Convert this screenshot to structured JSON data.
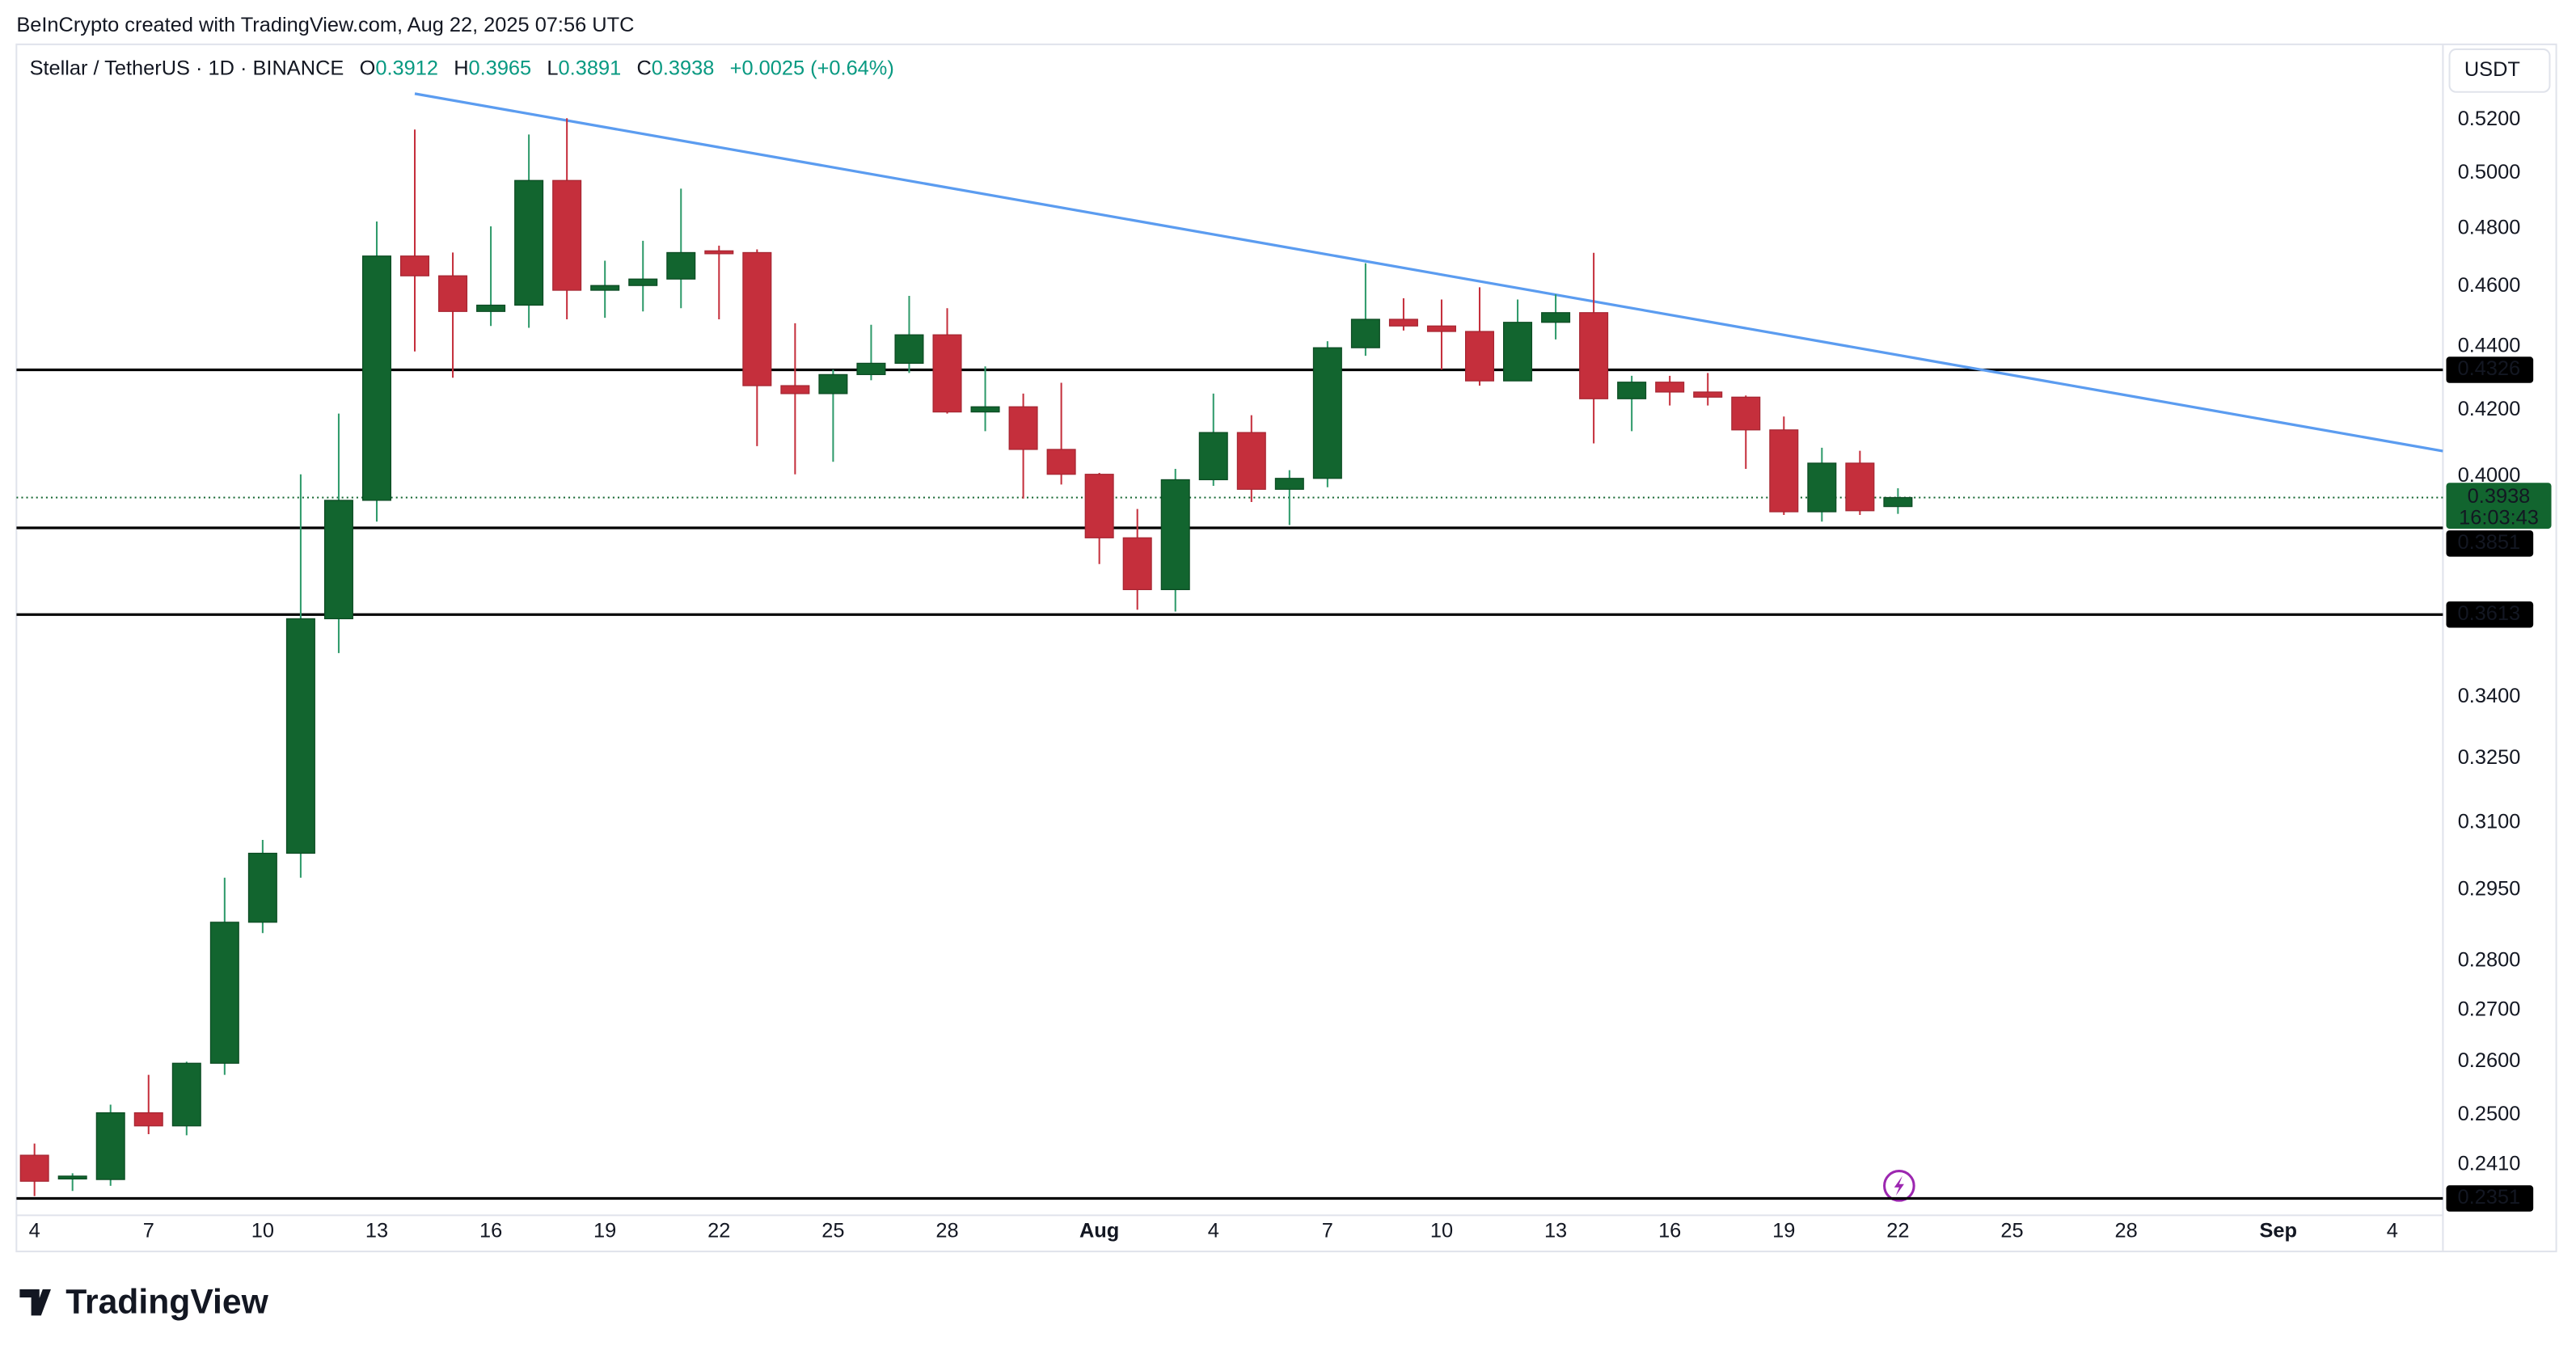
{
  "header": {
    "credit": "BeInCrypto created with TradingView.com, Aug 22, 2025 07:56 UTC"
  },
  "footer": {
    "logo": "TradingView"
  },
  "chart_data": {
    "type": "candlestick",
    "title": "Stellar / TetherUS · 1D · BINANCE",
    "ohlc_letters": [
      "O",
      "H",
      "L",
      "C"
    ],
    "change": "+0.0025 (+0.64%)",
    "currency": "USDT",
    "countdown": "16:03:43",
    "log_scale": true,
    "grid": false,
    "up_color": "#12652f",
    "up_wick_color": "#2e9a6a",
    "down_color": "#c52f3c",
    "header_value_color": "#089981",
    "x": [
      0,
      1,
      2,
      3,
      4,
      5,
      6,
      7,
      8,
      9,
      10,
      11,
      12,
      13,
      14,
      15,
      16,
      17,
      18,
      19,
      20,
      21,
      22,
      23,
      24,
      25,
      26,
      27,
      28,
      29,
      30,
      31,
      32,
      33,
      34,
      35,
      36,
      37,
      38,
      39,
      40,
      41,
      42,
      43,
      44,
      45,
      46,
      47,
      48,
      49
    ],
    "open": [
      0.2427,
      0.2385,
      0.2384,
      0.2504,
      0.248,
      0.2597,
      0.2881,
      0.3031,
      0.3602,
      0.393,
      0.4704,
      0.4636,
      0.4516,
      0.4537,
      0.4973,
      0.4587,
      0.4603,
      0.4625,
      0.4722,
      0.4716,
      0.4276,
      0.4251,
      0.4311,
      0.4347,
      0.4439,
      0.4194,
      0.421,
      0.408,
      0.4006,
      0.3823,
      0.368,
      0.399,
      0.4131,
      0.3962,
      0.3994,
      0.4397,
      0.449,
      0.4468,
      0.445,
      0.4291,
      0.448,
      0.4512,
      0.4235,
      0.4287,
      0.4256,
      0.424,
      0.4139,
      0.3897,
      0.4039,
      0.3912
    ],
    "high": [
      0.2448,
      0.2395,
      0.2519,
      0.2575,
      0.26,
      0.2977,
      0.3061,
      0.4006,
      0.4189,
      0.4825,
      0.5163,
      0.4716,
      0.4808,
      0.5144,
      0.5206,
      0.4688,
      0.4757,
      0.4943,
      0.474,
      0.4727,
      0.4477,
      0.4327,
      0.4472,
      0.4568,
      0.4527,
      0.4337,
      0.4251,
      0.4285,
      0.401,
      0.3905,
      0.4022,
      0.4251,
      0.4184,
      0.4018,
      0.4418,
      0.4679,
      0.456,
      0.4556,
      0.4597,
      0.4556,
      0.4573,
      0.4715,
      0.4307,
      0.4307,
      0.4316,
      0.4245,
      0.418,
      0.4085,
      0.4076,
      0.3965
    ],
    "low": [
      0.2355,
      0.2364,
      0.2373,
      0.2465,
      0.2463,
      0.2575,
      0.2858,
      0.2977,
      0.3512,
      0.3869,
      0.4385,
      0.4301,
      0.4468,
      0.4462,
      0.449,
      0.4495,
      0.4516,
      0.4527,
      0.449,
      0.409,
      0.4006,
      0.4043,
      0.4293,
      0.4316,
      0.4189,
      0.4135,
      0.3935,
      0.3976,
      0.375,
      0.3626,
      0.3621,
      0.3972,
      0.3925,
      0.3859,
      0.3968,
      0.4371,
      0.4453,
      0.4327,
      0.4276,
      0.4291,
      0.4424,
      0.4098,
      0.4135,
      0.4214,
      0.4214,
      0.4022,
      0.3888,
      0.3869,
      0.3888,
      0.3891
    ],
    "close": [
      0.2381,
      0.239,
      0.2504,
      0.248,
      0.2597,
      0.2881,
      0.3031,
      0.3602,
      0.393,
      0.4704,
      0.4636,
      0.4516,
      0.4537,
      0.4973,
      0.4587,
      0.4603,
      0.4625,
      0.4716,
      0.4712,
      0.4276,
      0.4251,
      0.4311,
      0.4347,
      0.4439,
      0.4194,
      0.421,
      0.408,
      0.4006,
      0.3823,
      0.368,
      0.399,
      0.4131,
      0.3962,
      0.3994,
      0.4397,
      0.449,
      0.4468,
      0.445,
      0.4291,
      0.448,
      0.4512,
      0.4235,
      0.4287,
      0.4256,
      0.424,
      0.4139,
      0.3897,
      0.4039,
      0.39,
      0.3938
    ],
    "xlim": [
      -0.475,
      63.33
    ],
    "ylim": [
      0.2322,
      0.5497
    ],
    "xticks": [
      {
        "value": 0,
        "label": "4"
      },
      {
        "value": 3,
        "label": "7"
      },
      {
        "value": 6,
        "label": "10"
      },
      {
        "value": 9,
        "label": "13"
      },
      {
        "value": 12,
        "label": "16"
      },
      {
        "value": 15,
        "label": "19"
      },
      {
        "value": 18,
        "label": "22"
      },
      {
        "value": 21,
        "label": "25"
      },
      {
        "value": 24,
        "label": "28"
      },
      {
        "value": 28,
        "label": "Aug"
      },
      {
        "value": 31,
        "label": "4"
      },
      {
        "value": 34,
        "label": "7"
      },
      {
        "value": 37,
        "label": "10"
      },
      {
        "value": 40,
        "label": "13"
      },
      {
        "value": 43,
        "label": "16"
      },
      {
        "value": 46,
        "label": "19"
      },
      {
        "value": 49,
        "label": "22"
      },
      {
        "value": 52,
        "label": "25"
      },
      {
        "value": 55,
        "label": "28"
      },
      {
        "value": 59,
        "label": "Sep"
      },
      {
        "value": 62,
        "label": "4"
      }
    ],
    "yticks": [
      {
        "value": 0.52,
        "label": "0.5200"
      },
      {
        "value": 0.5,
        "label": "0.5000"
      },
      {
        "value": 0.48,
        "label": "0.4800"
      },
      {
        "value": 0.46,
        "label": "0.4600"
      },
      {
        "value": 0.44,
        "label": "0.4400"
      },
      {
        "value": 0.42,
        "label": "0.4200"
      },
      {
        "value": 0.4,
        "label": "0.4000"
      },
      {
        "value": 0.34,
        "label": "0.3400"
      },
      {
        "value": 0.325,
        "label": "0.3250"
      },
      {
        "value": 0.31,
        "label": "0.3100"
      },
      {
        "value": 0.295,
        "label": "0.2950"
      },
      {
        "value": 0.28,
        "label": "0.2800"
      },
      {
        "value": 0.27,
        "label": "0.2700"
      },
      {
        "value": 0.26,
        "label": "0.2600"
      },
      {
        "value": 0.25,
        "label": "0.2500"
      },
      {
        "value": 0.241,
        "label": "0.2410"
      }
    ],
    "levels": [
      0.4326,
      0.3851,
      0.3613,
      0.2351
    ],
    "level_color": "#000000",
    "trendline": {
      "x": [
        10,
        63.33
      ],
      "y": [
        0.5301,
        0.4075
      ],
      "color": "#5b9cf0"
    }
  }
}
